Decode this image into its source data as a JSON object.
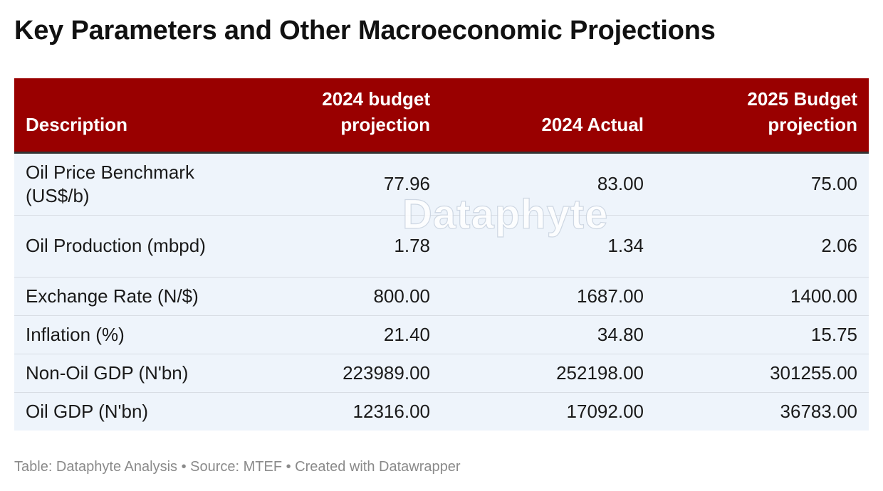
{
  "title": "Key Parameters and Other Macroeconomic Projections",
  "watermark": "Dataphyte",
  "footer": "Table: Dataphyte Analysis • Source: MTEF • Created with Datawrapper",
  "colors": {
    "header_bg": "#990000",
    "row_bg": "#eef4fb",
    "header_text": "#ffffff"
  },
  "chart_data": {
    "type": "table",
    "columns": [
      "Description",
      "2024 budget projection",
      "2024 Actual",
      "2025 Budget projection"
    ],
    "rows": [
      [
        "Oil Price Benchmark (US$/b)",
        "77.96",
        "83.00",
        "75.00"
      ],
      [
        "Oil Production (mbpd)",
        "1.78",
        "1.34",
        "2.06"
      ],
      [
        "Exchange Rate (N/$)",
        "800.00",
        "1687.00",
        "1400.00"
      ],
      [
        "Inflation (%)",
        "21.40",
        "34.80",
        "15.75"
      ],
      [
        "Non-Oil GDP (N'bn)",
        "223989.00",
        "252198.00",
        "301255.00"
      ],
      [
        "Oil GDP (N'bn)",
        "12316.00",
        "17092.00",
        "36783.00"
      ]
    ]
  }
}
